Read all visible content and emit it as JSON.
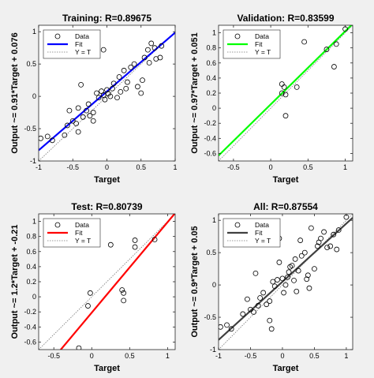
{
  "figure": {
    "background": "#f0f0f0",
    "axes_background": "#ffffff"
  },
  "chart_data": [
    {
      "type": "scatter",
      "title": "Training: R=0.89675",
      "xlabel": "Target",
      "ylabel": "Output ~= 0.91*Target + 0.076",
      "xlim": [
        -1,
        1
      ],
      "ylim": [
        -1,
        1.1
      ],
      "xticks": [
        -1,
        -0.5,
        0,
        0.5,
        1
      ],
      "yticks": [
        -1,
        -0.5,
        0,
        0.5,
        1
      ],
      "ytick_labels": [
        "-1",
        "-0.5",
        "0",
        "0.5",
        "1"
      ],
      "fit": {
        "slope": 0.91,
        "intercept": 0.076,
        "color": "#0000ff"
      },
      "legend": {
        "location": "top-left",
        "entries": [
          "Data",
          "Fit",
          "Y = T"
        ]
      },
      "points": {
        "x": [
          -0.97,
          -0.87,
          -0.8,
          -0.62,
          -0.58,
          -0.55,
          -0.5,
          -0.45,
          -0.42,
          -0.38,
          -0.35,
          -0.3,
          -0.27,
          -0.25,
          -0.2,
          -0.15,
          -0.12,
          -0.08,
          -0.05,
          -0.03,
          0.0,
          0.02,
          0.05,
          0.08,
          0.1,
          0.15,
          0.18,
          0.2,
          0.25,
          0.28,
          0.3,
          0.35,
          0.4,
          0.45,
          0.52,
          0.55,
          0.6,
          0.62,
          0.65,
          0.7,
          0.72,
          0.78,
          0.8,
          -0.42,
          -0.2,
          -0.05,
          0.5
        ],
        "y": [
          -0.65,
          -0.62,
          -0.68,
          -0.6,
          -0.45,
          -0.22,
          -0.38,
          -0.42,
          -0.18,
          0.18,
          -0.32,
          -0.22,
          -0.12,
          -0.3,
          -0.25,
          0.05,
          -0.02,
          0.08,
          0.02,
          -0.05,
          0.1,
          0.04,
          0.0,
          0.12,
          0.2,
          -0.02,
          0.3,
          0.07,
          0.4,
          0.12,
          0.22,
          0.45,
          0.5,
          0.15,
          0.25,
          0.6,
          0.72,
          0.52,
          0.82,
          0.75,
          0.58,
          0.6,
          0.78,
          -0.55,
          -0.38,
          0.72,
          0.05
        ]
      }
    },
    {
      "type": "scatter",
      "title": "Validation: R=0.83599",
      "xlabel": "Target",
      "ylabel": "Output ~= 0.97*Target + 0.051",
      "xlim": [
        -0.7,
        1.1
      ],
      "ylim": [
        -0.7,
        1.1
      ],
      "xticks": [
        -0.5,
        0,
        0.5,
        1
      ],
      "yticks": [
        -0.6,
        -0.4,
        -0.2,
        0,
        0.2,
        0.4,
        0.6,
        0.8,
        1
      ],
      "ytick_labels": [
        "-0.6",
        "-0.4",
        "-0.2",
        "0",
        "0.2",
        "0.4",
        "0.6",
        "0.8",
        "1"
      ],
      "fit": {
        "slope": 0.97,
        "intercept": 0.051,
        "color": "#00ff00"
      },
      "legend": {
        "location": "top-left",
        "entries": [
          "Data",
          "Fit",
          "Y = T"
        ]
      },
      "points": {
        "x": [
          0.15,
          0.18,
          0.2,
          0.15,
          0.2,
          0.35,
          0.45,
          0.75,
          0.85,
          0.88,
          1.0
        ],
        "y": [
          0.32,
          0.28,
          0.18,
          0.2,
          -0.1,
          0.28,
          0.88,
          0.78,
          0.55,
          0.85,
          1.05
        ]
      }
    },
    {
      "type": "scatter",
      "title": "Test: R=0.80739",
      "xlabel": "Target",
      "ylabel": "Output ~= 1.2*Target + -0.21",
      "xlim": [
        -0.7,
        1.1
      ],
      "ylim": [
        -0.7,
        1.1
      ],
      "xticks": [
        -0.5,
        0,
        0.5,
        1
      ],
      "yticks": [
        -0.6,
        -0.4,
        -0.2,
        0,
        0.2,
        0.4,
        0.6,
        0.8,
        1
      ],
      "ytick_labels": [
        "-0.6",
        "-0.4",
        "-0.2",
        "0",
        "0.2",
        "0.4",
        "0.6",
        "0.8",
        "1"
      ],
      "fit": {
        "slope": 1.2,
        "intercept": -0.21,
        "color": "#ff0000"
      },
      "legend": {
        "location": "top-left",
        "entries": [
          "Data",
          "Fit",
          "Y = T"
        ]
      },
      "points": {
        "x": [
          -0.17,
          -0.05,
          -0.02,
          0.25,
          0.4,
          0.42,
          0.42,
          0.57,
          0.57,
          0.83
        ],
        "y": [
          -0.68,
          -0.12,
          0.05,
          0.69,
          0.09,
          0.05,
          -0.05,
          0.75,
          0.66,
          0.76
        ]
      }
    },
    {
      "type": "scatter",
      "title": "All: R=0.87554",
      "xlabel": "Target",
      "ylabel": "Output ~= 0.9*Target + 0.05",
      "xlim": [
        -1,
        1.1
      ],
      "ylim": [
        -1,
        1.1
      ],
      "xticks": [
        -1,
        -0.5,
        0,
        0.5,
        1
      ],
      "yticks": [
        -1,
        -0.5,
        0,
        0.5,
        1
      ],
      "ytick_labels": [
        "-1",
        "-0.5",
        "0",
        "0.5",
        "1"
      ],
      "fit": {
        "slope": 0.9,
        "intercept": 0.05,
        "color": "#404040"
      },
      "legend": {
        "location": "top-left",
        "entries": [
          "Data",
          "Fit",
          "Y = T"
        ]
      },
      "points": {
        "x": [
          -0.97,
          -0.87,
          -0.8,
          -0.62,
          -0.55,
          -0.5,
          -0.45,
          -0.42,
          -0.38,
          -0.3,
          -0.25,
          -0.2,
          -0.15,
          -0.12,
          -0.08,
          -0.05,
          0.0,
          0.05,
          0.08,
          0.1,
          0.15,
          0.18,
          0.2,
          0.25,
          0.3,
          0.35,
          0.4,
          0.45,
          0.5,
          0.55,
          0.6,
          0.65,
          0.7,
          0.75,
          0.8,
          0.85,
          0.88,
          1.0,
          -0.35,
          -0.2,
          -0.05,
          0.12,
          0.22,
          0.38,
          0.42,
          0.57,
          -0.17,
          0.02,
          0.28
        ],
        "y": [
          -0.65,
          -0.62,
          -0.68,
          -0.45,
          -0.22,
          -0.38,
          -0.42,
          0.18,
          -0.32,
          -0.12,
          -0.3,
          -0.25,
          0.05,
          -0.02,
          0.08,
          0.72,
          0.1,
          0.0,
          0.12,
          0.2,
          0.3,
          0.07,
          0.4,
          0.22,
          0.45,
          0.5,
          0.15,
          0.88,
          0.25,
          0.6,
          0.72,
          0.82,
          0.58,
          0.6,
          0.78,
          0.55,
          0.85,
          1.05,
          -0.2,
          -0.55,
          0.35,
          0.28,
          -0.1,
          0.09,
          -0.05,
          0.66,
          -0.68,
          -0.12,
          0.69
        ]
      }
    }
  ]
}
